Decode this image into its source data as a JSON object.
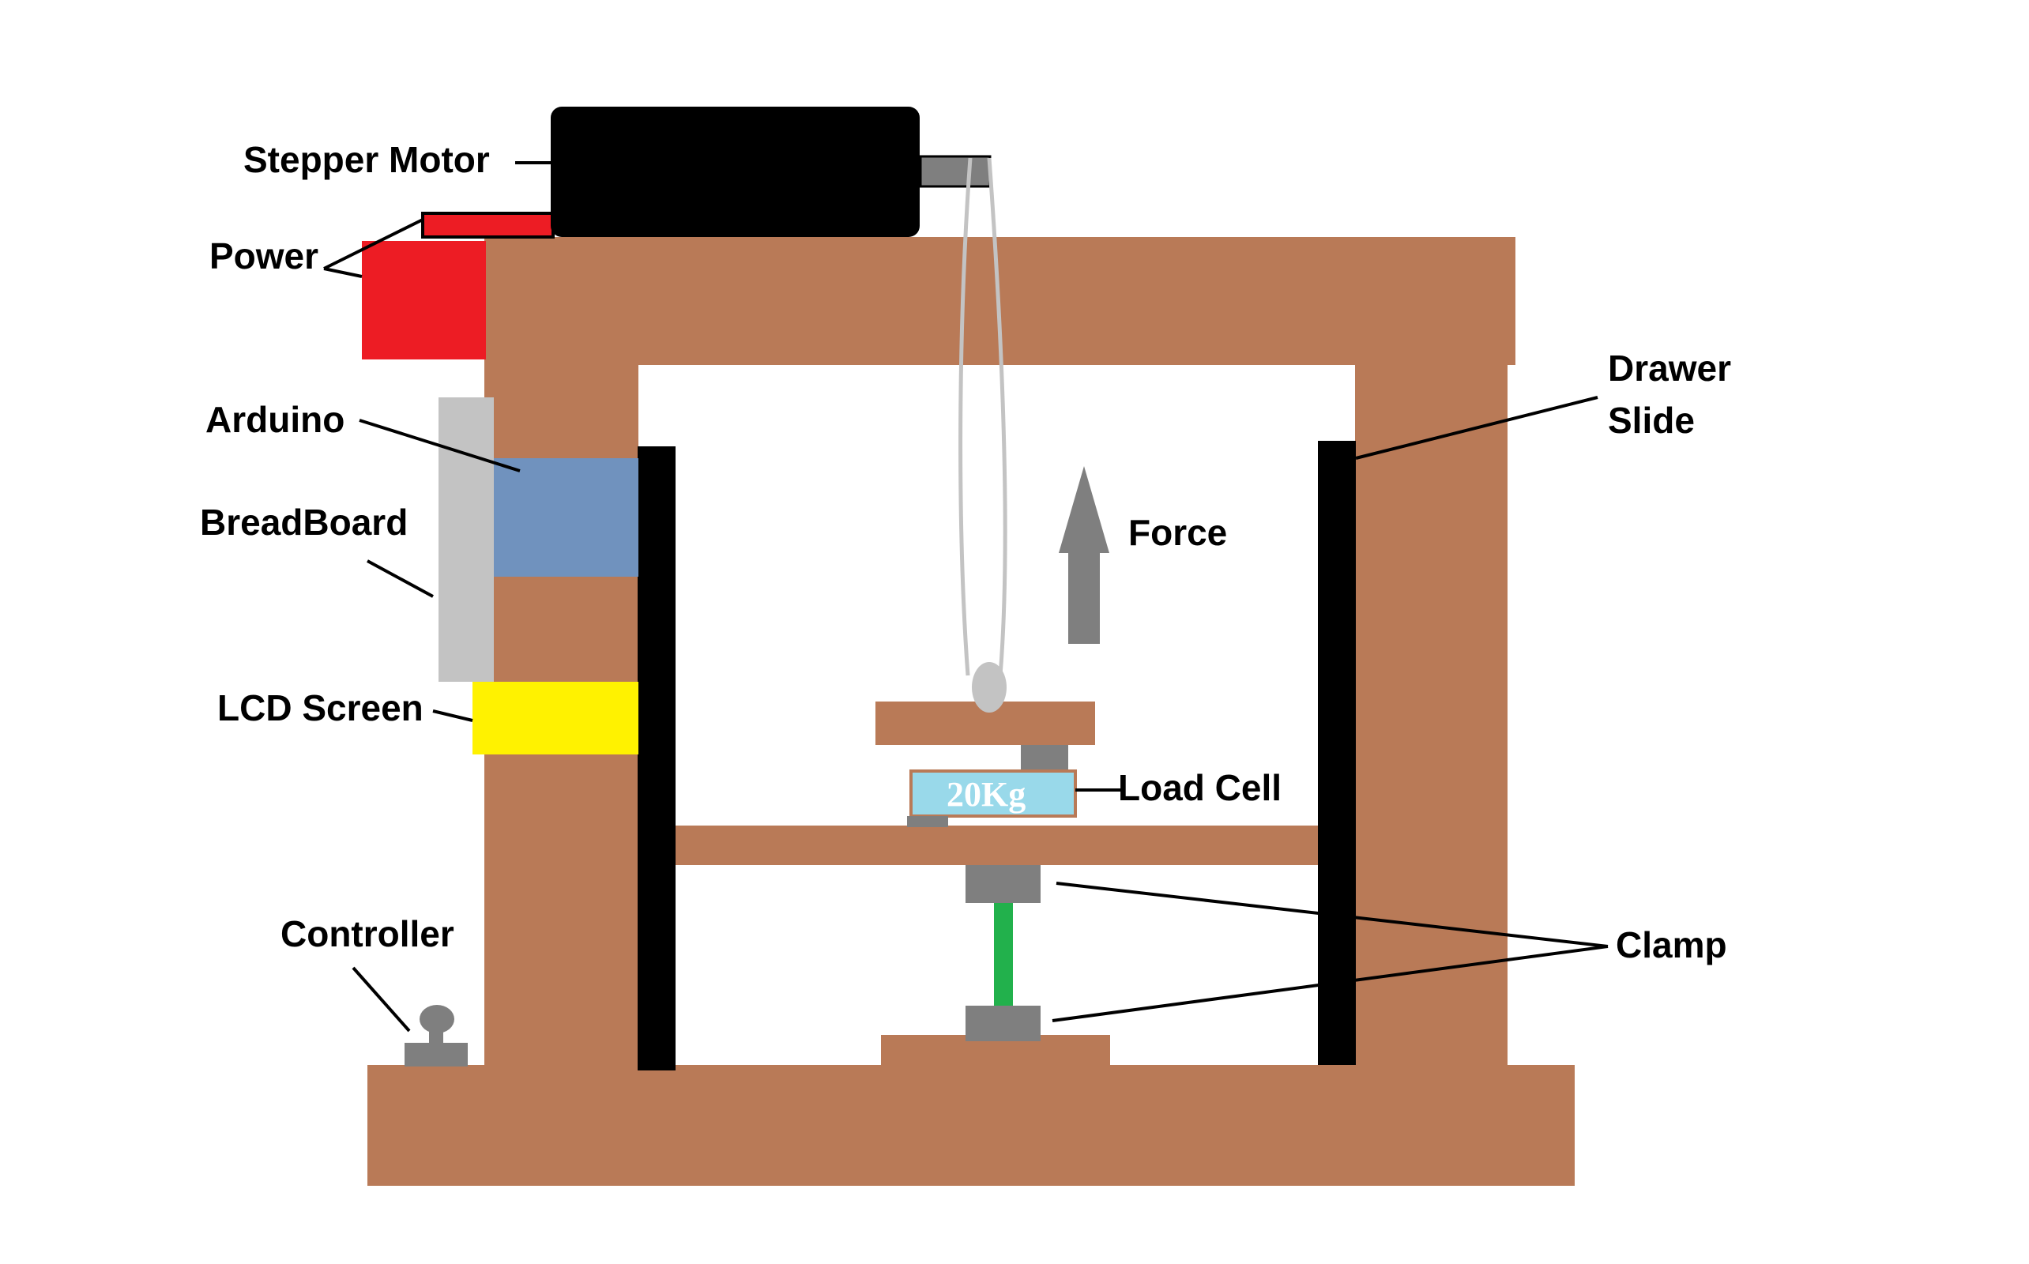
{
  "labels": {
    "stepper_motor": "Stepper Motor",
    "power": "Power",
    "arduino": "Arduino",
    "breadboard": "BreadBoard",
    "lcd_screen": "LCD Screen",
    "controller": "Controller",
    "drawer_slide_line1": "Drawer",
    "drawer_slide_line2": "Slide",
    "force": "Force",
    "load_cell": "Load Cell",
    "load_cell_rating": "20Kg",
    "clamp": "Clamp"
  },
  "colors": {
    "wood": "#b97a57",
    "motor": "#000000",
    "power": "#ed1c24",
    "arduino": "#7092be",
    "breadboard": "#c3c3c3",
    "lcd": "#fff200",
    "slide": "#000000",
    "metal": "#7f7f7f",
    "load_cell": "#99d9ea",
    "specimen": "#22b14c",
    "string": "#c3c3c3"
  }
}
